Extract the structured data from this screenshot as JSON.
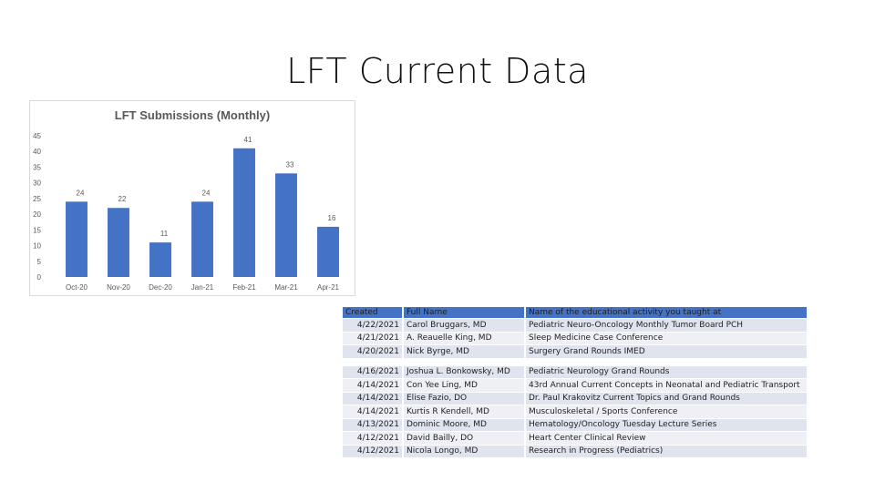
{
  "slide": {
    "title": "LFT Current Data"
  },
  "chart_data": {
    "type": "bar",
    "title": "LFT Submissions  (Monthly)",
    "categories": [
      "Oct-20",
      "Nov-20",
      "Dec-20",
      "Jan-21",
      "Feb-21",
      "Mar-21",
      "Apr-21"
    ],
    "values": [
      24,
      22,
      11,
      24,
      41,
      33,
      16
    ],
    "ylim": [
      0,
      45
    ],
    "yticks": [
      0,
      5,
      10,
      15,
      20,
      25,
      30,
      35,
      40,
      45
    ],
    "grid": false,
    "bar_color": "#4472c4",
    "xlabel": "",
    "ylabel": ""
  },
  "table": {
    "headers": [
      "Created",
      "Full Name",
      "Name of the educational activity you taught at"
    ],
    "groups": [
      [
        [
          "4/22/2021",
          "Carol Bruggars, MD",
          "Pediatric Neuro-Oncology Monthly Tumor Board PCH"
        ],
        [
          "4/21/2021",
          "A. Reauelle  King, MD",
          "Sleep Medicine Case Conference"
        ],
        [
          "4/20/2021",
          "Nick  Byrge, MD",
          "Surgery Grand Rounds IMED"
        ]
      ],
      [
        [
          "4/16/2021",
          "Joshua L. Bonkowsky, MD",
          "Pediatric Neurology Grand Rounds"
        ],
        [
          "4/14/2021",
          "Con Yee Ling, MD",
          "43rd Annual Current Concepts in Neonatal and Pediatric Transport"
        ],
        [
          "4/14/2021",
          "Elise  Fazio, DO",
          "Dr. Paul Krakovitz Current Topics and Grand Rounds"
        ],
        [
          "4/14/2021",
          "Kurtis R Kendell, MD",
          "Musculoskeletal / Sports Conference"
        ],
        [
          "4/13/2021",
          "Dominic  Moore, MD",
          "Hematology/Oncology Tuesday Lecture Series"
        ],
        [
          "4/12/2021",
          "David  Bailly, DO",
          "Heart Center Clinical Review"
        ],
        [
          "4/12/2021",
          "Nicola  Longo, MD",
          "Research in Progress (Pediatrics)"
        ]
      ]
    ]
  }
}
